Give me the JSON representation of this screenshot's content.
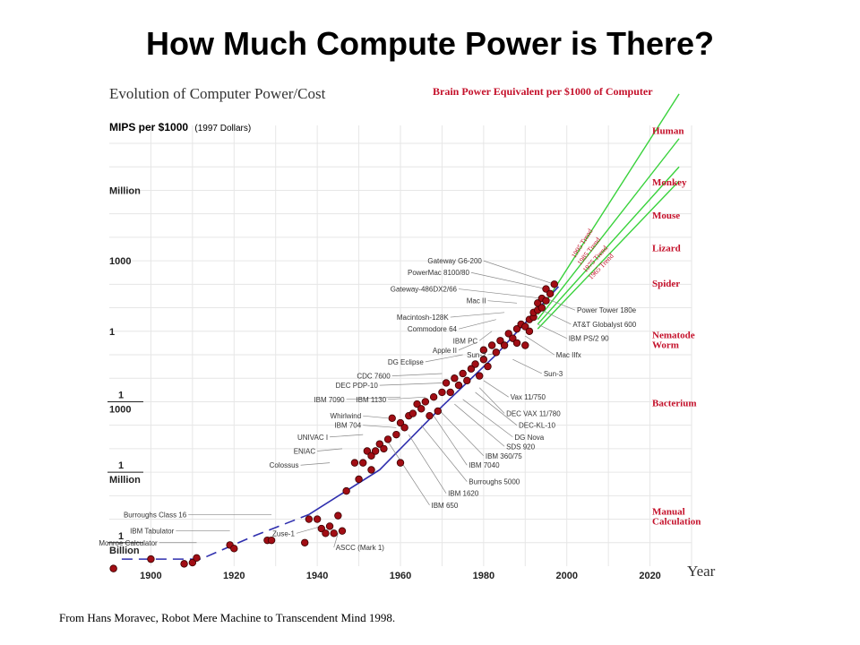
{
  "slide": {
    "title": "How Much Compute Power is There?",
    "source": "From Hans Moravec, Robot Mere Machine to Transcendent Mind 1998."
  },
  "colors": {
    "points": "#a10d14",
    "trend_line": "#39d23c",
    "trend_label": "#c4102a",
    "fit_line": "#2f2fae",
    "grid": "#e6e6e6",
    "brain_text": "#c4102a"
  },
  "chart_data": {
    "type": "scatter",
    "title": "Evolution of Computer Power/Cost",
    "ylabel": "MIPS per $1000",
    "ylabel_note": "(1997 Dollars)",
    "xlabel": "Year",
    "y_scale": "log",
    "grid": true,
    "xlim": [
      1890,
      2030
    ],
    "ylim_log10": [
      -10,
      8
    ],
    "x_ticks": [
      1900,
      1920,
      1940,
      1960,
      1980,
      2000,
      2020
    ],
    "y_ticks": [
      {
        "log10": 6,
        "label": "Million"
      },
      {
        "log10": 3,
        "label": "1000"
      },
      {
        "log10": 0,
        "label": "1"
      },
      {
        "log10": -3,
        "label": "1\n1000"
      },
      {
        "log10": -6,
        "label": "1\nMillion"
      },
      {
        "log10": -9,
        "label": "1\nBillion"
      }
    ],
    "points": [
      [
        1891,
        -10.1
      ],
      [
        1900,
        -9.7
      ],
      [
        1908,
        -9.9
      ],
      [
        1910,
        -9.85
      ],
      [
        1911,
        -9.65
      ],
      [
        1919,
        -9.1
      ],
      [
        1920,
        -9.25
      ],
      [
        1928,
        -8.9
      ],
      [
        1929,
        -8.9
      ],
      [
        1937,
        -9.0
      ],
      [
        1938,
        -8.0
      ],
      [
        1940,
        -8.0
      ],
      [
        1941,
        -8.4
      ],
      [
        1942,
        -8.6
      ],
      [
        1943,
        -8.3
      ],
      [
        1944,
        -8.6
      ],
      [
        1945,
        -7.85
      ],
      [
        1946,
        -8.5
      ],
      [
        1947,
        -6.8
      ],
      [
        1949,
        -5.6
      ],
      [
        1950,
        -6.3
      ],
      [
        1951,
        -5.6
      ],
      [
        1952,
        -5.1
      ],
      [
        1953,
        -5.3
      ],
      [
        1953,
        -5.9
      ],
      [
        1954,
        -5.1
      ],
      [
        1955,
        -4.8
      ],
      [
        1956,
        -5.0
      ],
      [
        1957,
        -4.6
      ],
      [
        1958,
        -3.7
      ],
      [
        1959,
        -4.4
      ],
      [
        1960,
        -5.6
      ],
      [
        1960,
        -3.9
      ],
      [
        1961,
        -4.1
      ],
      [
        1962,
        -3.6
      ],
      [
        1963,
        -3.5
      ],
      [
        1964,
        -3.1
      ],
      [
        1965,
        -3.3
      ],
      [
        1966,
        -3.0
      ],
      [
        1967,
        -3.6
      ],
      [
        1968,
        -2.8
      ],
      [
        1969,
        -3.4
      ],
      [
        1970,
        -2.6
      ],
      [
        1971,
        -2.2
      ],
      [
        1972,
        -2.6
      ],
      [
        1973,
        -2.0
      ],
      [
        1974,
        -2.3
      ],
      [
        1975,
        -1.8
      ],
      [
        1976,
        -2.1
      ],
      [
        1977,
        -1.6
      ],
      [
        1978,
        -1.4
      ],
      [
        1979,
        -1.9
      ],
      [
        1980,
        -1.2
      ],
      [
        1980,
        -0.8
      ],
      [
        1981,
        -1.5
      ],
      [
        1982,
        -0.6
      ],
      [
        1983,
        -0.9
      ],
      [
        1984,
        -0.4
      ],
      [
        1985,
        -0.6
      ],
      [
        1986,
        -0.1
      ],
      [
        1987,
        -0.3
      ],
      [
        1988,
        0.1
      ],
      [
        1988,
        -0.5
      ],
      [
        1989,
        0.3
      ],
      [
        1990,
        0.2
      ],
      [
        1990,
        -0.6
      ],
      [
        1991,
        0.5
      ],
      [
        1991,
        0.0
      ],
      [
        1992,
        0.6
      ],
      [
        1992,
        0.8
      ],
      [
        1993,
        0.9
      ],
      [
        1993,
        1.2
      ],
      [
        1994,
        1.0
      ],
      [
        1994,
        1.4
      ],
      [
        1995,
        1.3
      ],
      [
        1995,
        1.8
      ],
      [
        1996,
        1.6
      ],
      [
        1997,
        2.0
      ]
    ],
    "fit_segments": [
      {
        "style": "dashed",
        "points": [
          [
            1893,
            -9.7
          ],
          [
            1912,
            -9.7
          ],
          [
            1925,
            -8.7
          ],
          [
            1938,
            -7.8
          ]
        ]
      },
      {
        "style": "solid",
        "points": [
          [
            1938,
            -7.8
          ],
          [
            1955,
            -5.9
          ],
          [
            1970,
            -3.2
          ],
          [
            1983,
            -1.0
          ],
          [
            1998,
            1.9
          ]
        ]
      }
    ],
    "trends": [
      {
        "name": "1995 Trend",
        "from": [
          1993,
          0.7
        ],
        "to": [
          2027,
          10.1
        ]
      },
      {
        "name": "1985 Trend",
        "from": [
          1993,
          0.5
        ],
        "to": [
          2027,
          8.2
        ]
      },
      {
        "name": "1975 Trend",
        "from": [
          1993,
          0.3
        ],
        "to": [
          2027,
          7.0
        ]
      },
      {
        "name": "1965 Trend",
        "from": [
          1993,
          0.1
        ],
        "to": [
          2027,
          6.4
        ]
      }
    ],
    "brain_header": "Brain Power Equivalent per $1000 of Computer",
    "brain_levels": [
      {
        "label": "Human",
        "log10": 8.4
      },
      {
        "label": "Monkey",
        "log10": 6.2
      },
      {
        "label": "Mouse",
        "log10": 4.8
      },
      {
        "label": "Lizard",
        "log10": 3.4
      },
      {
        "label": "Spider",
        "log10": 1.9
      },
      {
        "label": "Nematode\nWorm",
        "log10": -0.3
      },
      {
        "label": "Bacterium",
        "log10": -3.2
      },
      {
        "label": "Manual\nCalculation",
        "log10": -7.8
      }
    ],
    "annotations_right": [
      {
        "text": "Gateway G6-200",
        "x": 1997,
        "y": 2.0,
        "lx": 1980,
        "ly": 3.0
      },
      {
        "text": "PowerMac 8100/80",
        "x": 1995,
        "y": 1.8,
        "lx": 1977,
        "ly": 2.5
      },
      {
        "text": "Gateway-486DX2/66",
        "x": 1994,
        "y": 1.4,
        "lx": 1974,
        "ly": 1.8
      },
      {
        "text": "Mac II",
        "x": 1988,
        "y": 1.2,
        "lx": 1981,
        "ly": 1.3
      },
      {
        "text": "Macintosh-128K",
        "x": 1985,
        "y": 0.8,
        "lx": 1972,
        "ly": 0.6
      },
      {
        "text": "Commodore 64",
        "x": 1983,
        "y": 0.5,
        "lx": 1974,
        "ly": 0.1
      },
      {
        "text": "IBM PC",
        "x": 1982,
        "y": 0.0,
        "lx": 1979,
        "ly": -0.4
      },
      {
        "text": "Apple II",
        "x": 1978,
        "y": -0.5,
        "lx": 1974,
        "ly": -0.8
      },
      {
        "text": "Sun-2",
        "x": 1984,
        "y": -0.9,
        "lx": 1981,
        "ly": -1.0
      },
      {
        "text": "DG Eclipse",
        "x": 1975,
        "y": -1.0,
        "lx": 1966,
        "ly": -1.3
      },
      {
        "text": "CDC 7600",
        "x": 1970,
        "y": -1.8,
        "lx": 1958,
        "ly": -1.9
      },
      {
        "text": "DEC PDP-10",
        "x": 1970,
        "y": -2.2,
        "lx": 1955,
        "ly": -2.3
      },
      {
        "text": "IBM 7090",
        "x": 1960,
        "y": -2.8,
        "lx": 1947,
        "ly": -2.9
      },
      {
        "text": "IBM 1130",
        "x": 1966,
        "y": -2.8,
        "lx": 1957,
        "ly": -2.9
      },
      {
        "text": "Whirlwind",
        "x": 1957,
        "y": -3.7,
        "lx": 1951,
        "ly": -3.6
      },
      {
        "text": "IBM 704",
        "x": 1959,
        "y": -4.1,
        "lx": 1951,
        "ly": -4.0
      },
      {
        "text": "UNIVAC I",
        "x": 1951,
        "y": -4.4,
        "lx": 1943,
        "ly": -4.5
      },
      {
        "text": "ENIAC",
        "x": 1946,
        "y": -5.0,
        "lx": 1940,
        "ly": -5.1
      },
      {
        "text": "Colossus",
        "x": 1943,
        "y": -5.6,
        "lx": 1936,
        "ly": -5.7
      },
      {
        "text": "Burroughs Class 16",
        "x": 1929,
        "y": -7.8,
        "lx": 1909,
        "ly": -7.8
      },
      {
        "text": "IBM Tabulator",
        "x": 1919,
        "y": -8.5,
        "lx": 1906,
        "ly": -8.5
      },
      {
        "text": "Monroe Calculator",
        "x": 1911,
        "y": -9.0,
        "lx": 1902,
        "ly": -9.0
      },
      {
        "text": "Zuse-1",
        "x": 1941,
        "y": -8.3,
        "lx": 1935,
        "ly": -8.6
      }
    ],
    "annotations_left": [
      {
        "text": "Power Tower 180e",
        "x": 1995,
        "y": 1.4,
        "lx": 2002,
        "ly": 0.9
      },
      {
        "text": "AT&T Globalyst 600",
        "x": 1994,
        "y": 0.9,
        "lx": 2001,
        "ly": 0.3
      },
      {
        "text": "IBM PS/2 90",
        "x": 1993,
        "y": 0.3,
        "lx": 2000,
        "ly": -0.3
      },
      {
        "text": "Mac IIfx",
        "x": 1990,
        "y": -0.2,
        "lx": 1997,
        "ly": -1.0
      },
      {
        "text": "Sun-3",
        "x": 1987,
        "y": -1.2,
        "lx": 1994,
        "ly": -1.8
      },
      {
        "text": "Vax 11/750",
        "x": 1980,
        "y": -2.1,
        "lx": 1986,
        "ly": -2.8
      },
      {
        "text": "DEC VAX 11/780",
        "x": 1979,
        "y": -2.4,
        "lx": 1985,
        "ly": -3.5
      },
      {
        "text": "DEC-KL-10",
        "x": 1978,
        "y": -2.6,
        "lx": 1988,
        "ly": -4.0
      },
      {
        "text": "DG Nova",
        "x": 1975,
        "y": -2.9,
        "lx": 1987,
        "ly": -4.5
      },
      {
        "text": "SDS 920",
        "x": 1973,
        "y": -3.1,
        "lx": 1985,
        "ly": -4.9
      },
      {
        "text": "IBM 360/75",
        "x": 1969,
        "y": -3.3,
        "lx": 1980,
        "ly": -5.3
      },
      {
        "text": "IBM 7040",
        "x": 1968,
        "y": -3.6,
        "lx": 1976,
        "ly": -5.7
      },
      {
        "text": "Burroughs 5000",
        "x": 1965,
        "y": -4.0,
        "lx": 1976,
        "ly": -6.4
      },
      {
        "text": "IBM 1620",
        "x": 1962,
        "y": -4.4,
        "lx": 1971,
        "ly": -6.9
      },
      {
        "text": "IBM 650",
        "x": 1957,
        "y": -4.7,
        "lx": 1967,
        "ly": -7.4
      },
      {
        "text": "ASCC (Mark 1)",
        "x": 1945,
        "y": -8.6,
        "lx": 1944,
        "ly": -9.2
      }
    ]
  }
}
